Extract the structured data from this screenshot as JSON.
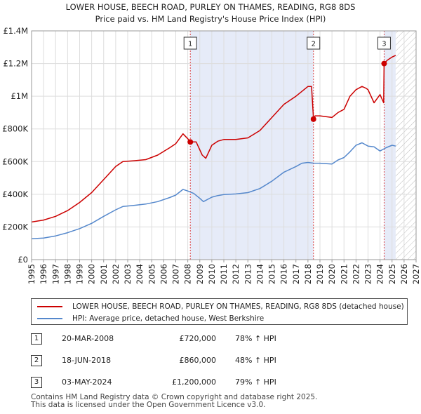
{
  "chart_data": {
    "type": "line",
    "title": "LOWER HOUSE, BEECH ROAD, PURLEY ON THAMES, READING, RG8 8DS",
    "subtitle": "Price paid vs. HM Land Registry's House Price Index (HPI)",
    "xlim": [
      1995,
      2027
    ],
    "ylim": [
      0,
      1400000
    ],
    "x_ticks": [
      "1995",
      "1996",
      "1997",
      "1998",
      "1999",
      "2000",
      "2001",
      "2002",
      "2003",
      "2004",
      "2005",
      "2006",
      "2007",
      "2008",
      "2009",
      "2010",
      "2011",
      "2012",
      "2013",
      "2014",
      "2015",
      "2016",
      "2017",
      "2018",
      "2019",
      "2020",
      "2021",
      "2022",
      "2023",
      "2024",
      "2025",
      "2026",
      "2027"
    ],
    "y_ticks": [
      {
        "value": 0,
        "label": "£0"
      },
      {
        "value": 200000,
        "label": "£200K"
      },
      {
        "value": 400000,
        "label": "£400K"
      },
      {
        "value": 600000,
        "label": "£600K"
      },
      {
        "value": 800000,
        "label": "£800K"
      },
      {
        "value": 1000000,
        "label": "£1M"
      },
      {
        "value": 1200000,
        "label": "£1.2M"
      },
      {
        "value": 1400000,
        "label": "£1.4M"
      }
    ],
    "shaded_ranges": [
      [
        2008.21,
        2018.46
      ],
      [
        2024.34,
        2025.3
      ]
    ],
    "hatched_range": [
      2025.3,
      2027
    ],
    "series": [
      {
        "name": "LOWER HOUSE, BEECH ROAD, PURLEY ON THAMES, READING, RG8 8DS (detached house)",
        "color": "#cc0000",
        "x": [
          1995.0,
          1996.0,
          1997.0,
          1998.0,
          1999.0,
          2000.0,
          2001.0,
          2002.0,
          2002.6,
          2003.5,
          2004.5,
          2005.5,
          2006.5,
          2007.0,
          2007.6,
          2008.0,
          2008.21,
          2008.7,
          2009.2,
          2009.5,
          2010.0,
          2010.5,
          2011.0,
          2012.0,
          2013.0,
          2014.0,
          2015.0,
          2016.0,
          2017.0,
          2017.5,
          2018.0,
          2018.3,
          2018.46,
          2018.6,
          2019.0,
          2020.0,
          2020.5,
          2021.0,
          2021.5,
          2022.0,
          2022.5,
          2022.8,
          2023.0,
          2023.5,
          2024.0,
          2024.3,
          2024.34,
          2024.6,
          2025.0,
          2025.3
        ],
        "values": [
          230000,
          242000,
          265000,
          300000,
          350000,
          410000,
          490000,
          570000,
          600000,
          605000,
          612000,
          640000,
          685000,
          710000,
          770000,
          740000,
          720000,
          720000,
          640000,
          620000,
          700000,
          725000,
          735000,
          735000,
          745000,
          790000,
          870000,
          950000,
          1000000,
          1030000,
          1060000,
          1060000,
          860000,
          880000,
          880000,
          870000,
          900000,
          920000,
          1000000,
          1040000,
          1060000,
          1050000,
          1040000,
          960000,
          1010000,
          960000,
          1200000,
          1220000,
          1240000,
          1250000
        ]
      },
      {
        "name": "HPI: Average price, detached house, West Berkshire",
        "color": "#5588cc",
        "x": [
          1995.0,
          1996.0,
          1997.0,
          1998.0,
          1999.0,
          2000.0,
          2001.0,
          2002.0,
          2002.6,
          2003.5,
          2004.5,
          2005.5,
          2006.5,
          2007.0,
          2007.6,
          2008.0,
          2008.5,
          2009.0,
          2009.3,
          2010.0,
          2010.5,
          2011.0,
          2012.0,
          2013.0,
          2014.0,
          2015.0,
          2016.0,
          2017.0,
          2017.5,
          2018.0,
          2018.5,
          2019.0,
          2020.0,
          2020.5,
          2021.0,
          2021.5,
          2022.0,
          2022.5,
          2023.0,
          2023.5,
          2024.0,
          2024.5,
          2025.0,
          2025.3
        ],
        "values": [
          128000,
          132000,
          145000,
          165000,
          190000,
          222000,
          265000,
          305000,
          325000,
          332000,
          340000,
          355000,
          380000,
          395000,
          430000,
          420000,
          405000,
          375000,
          355000,
          382000,
          392000,
          398000,
          402000,
          410000,
          435000,
          480000,
          535000,
          570000,
          590000,
          595000,
          590000,
          590000,
          585000,
          610000,
          625000,
          660000,
          700000,
          715000,
          695000,
          690000,
          665000,
          685000,
          700000,
          695000
        ]
      }
    ],
    "sale_markers": [
      {
        "label": "1",
        "x": 2008.21,
        "value": 720000
      },
      {
        "label": "2",
        "x": 2018.46,
        "value": 860000
      },
      {
        "label": "3",
        "x": 2024.34,
        "value": 1200000
      }
    ]
  },
  "legend": {
    "property_label": "LOWER HOUSE, BEECH ROAD, PURLEY ON THAMES, READING, RG8 8DS (detached house)",
    "hpi_label": "HPI: Average price, detached house, West Berkshire"
  },
  "transactions": [
    {
      "num": "1",
      "date": "20-MAR-2008",
      "price": "£720,000",
      "change": "78% ↑ HPI"
    },
    {
      "num": "2",
      "date": "18-JUN-2018",
      "price": "£860,000",
      "change": "48% ↑ HPI"
    },
    {
      "num": "3",
      "date": "03-MAY-2024",
      "price": "£1,200,000",
      "change": "79% ↑ HPI"
    }
  ],
  "footer": {
    "line1": "Contains HM Land Registry data © Crown copyright and database right 2025.",
    "line2": "This data is licensed under the Open Government Licence v3.0."
  },
  "colors": {
    "property": "#cc0000",
    "hpi": "#5588cc",
    "shade": "#e6ebf8",
    "grid": "#dddddd"
  }
}
